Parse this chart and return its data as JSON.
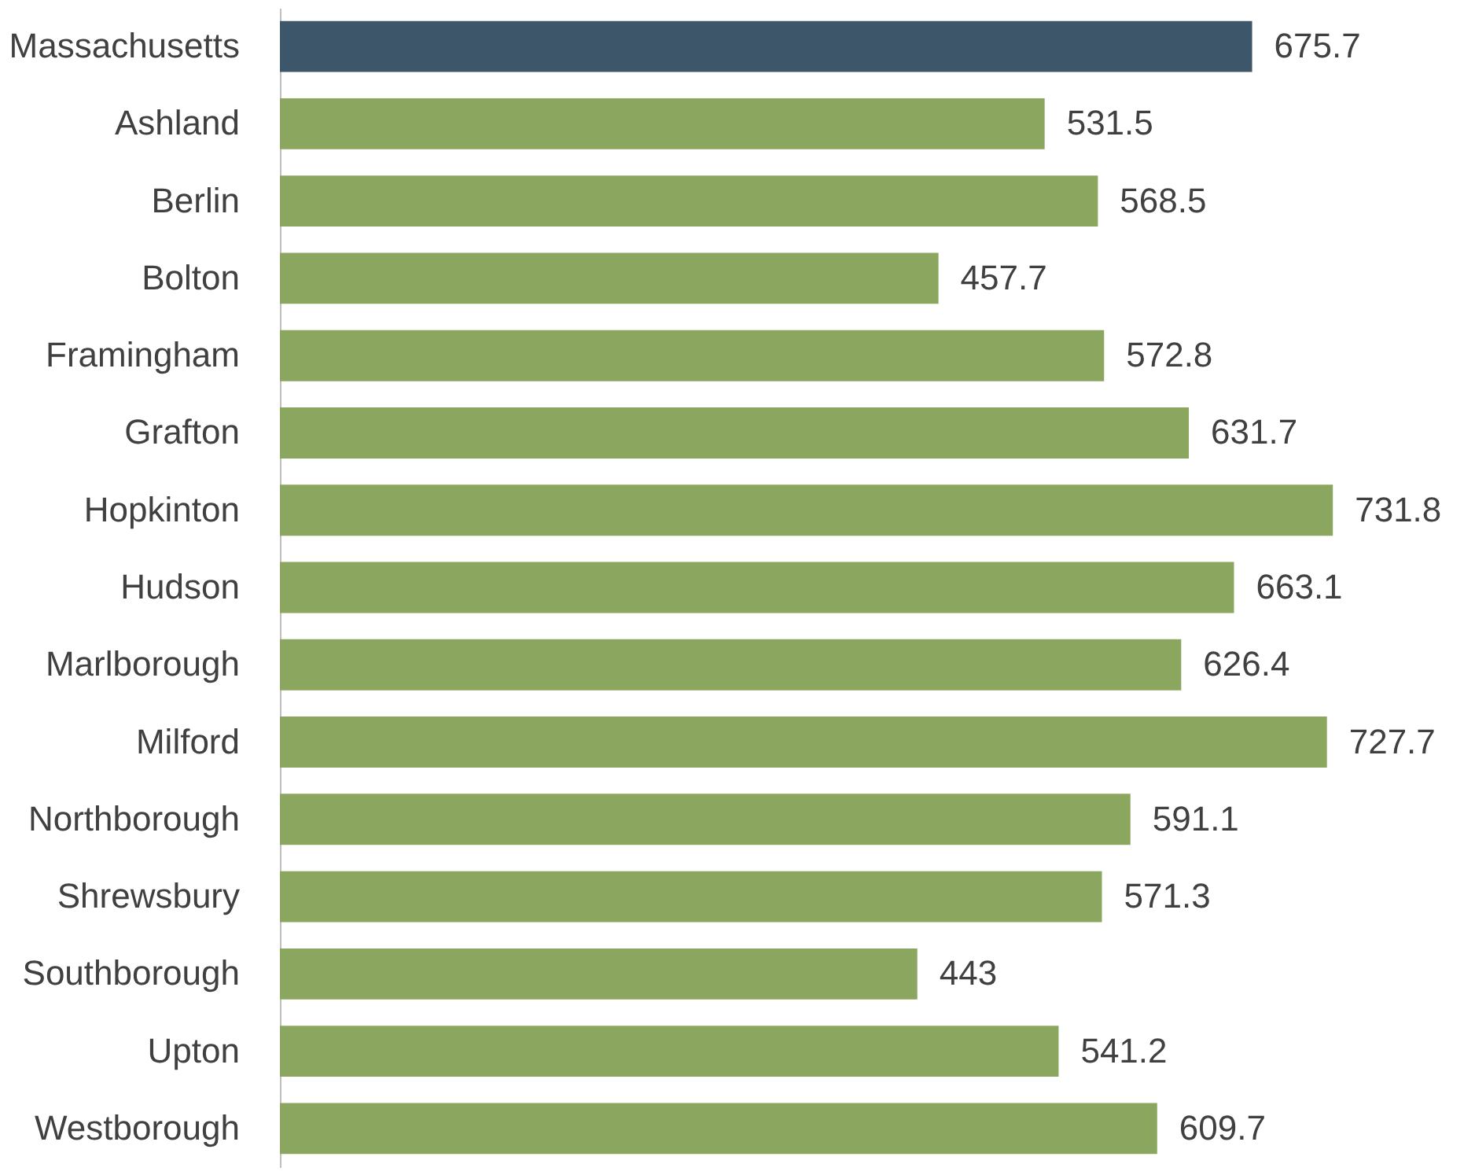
{
  "chart_data": {
    "type": "bar",
    "orientation": "horizontal",
    "data_labels": true,
    "grid": false,
    "categories": [
      "Massachusetts",
      "Ashland",
      "Berlin",
      "Bolton",
      "Framingham",
      "Grafton",
      "Hopkinton",
      "Hudson",
      "Marlborough",
      "Milford",
      "Northborough",
      "Shrewsbury",
      "Southborough",
      "Upton",
      "Westborough"
    ],
    "values": [
      675.7,
      531.5,
      568.5,
      457.7,
      572.8,
      631.7,
      731.8,
      663.1,
      626.4,
      727.7,
      591.1,
      571.3,
      443,
      541.2,
      609.7
    ],
    "colors": [
      "#3d566a",
      "#8aa65f",
      "#8aa65f",
      "#8aa65f",
      "#8aa65f",
      "#8aa65f",
      "#8aa65f",
      "#8aa65f",
      "#8aa65f",
      "#8aa65f",
      "#8aa65f",
      "#8aa65f",
      "#8aa65f",
      "#8aa65f",
      "#8aa65f"
    ]
  }
}
